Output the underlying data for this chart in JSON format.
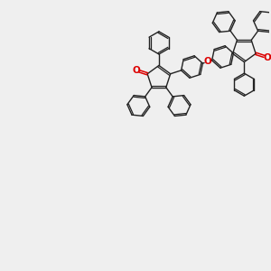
{
  "background_color": "#efefef",
  "line_color": "#222222",
  "oxygen_color": "#dd0000",
  "line_width": 1.0,
  "fig_width": 3.0,
  "fig_height": 3.0,
  "xlim": [
    0,
    10
  ],
  "ylim": [
    0,
    10
  ]
}
